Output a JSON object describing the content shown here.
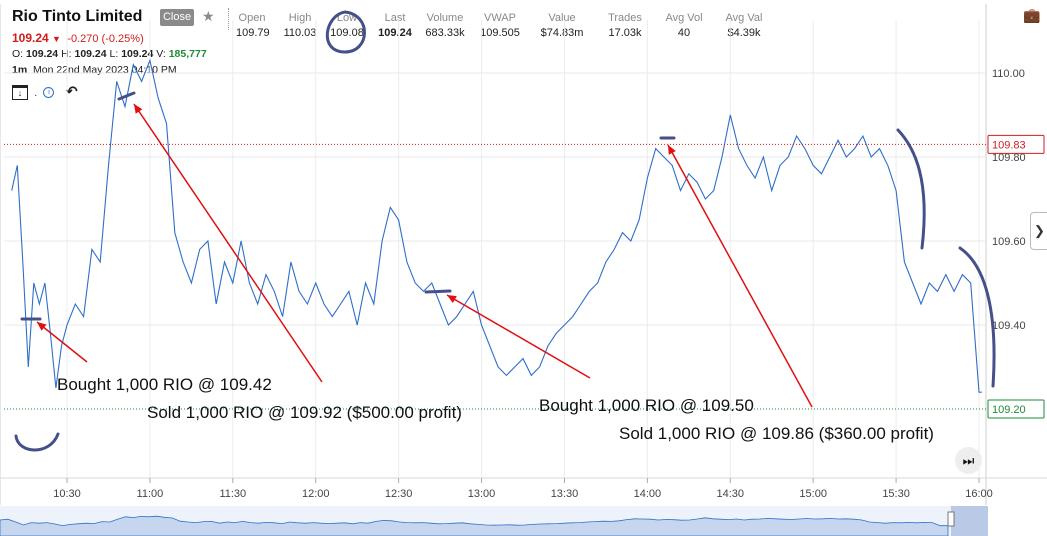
{
  "header": {
    "title": "Rio Tinto Limited",
    "close_label": "Close",
    "price": "109.24",
    "change": "-0.270 (-0.25%)",
    "ohlc": {
      "o_label": "O:",
      "o": "109.24",
      "h_label": "H:",
      "h": "109.24",
      "l_label": "L:",
      "l": "109.24",
      "v_label": "V:",
      "v": "185,777"
    },
    "interval": "1m",
    "datetime": "Mon 22nd May 2023 04:10 PM"
  },
  "stats": [
    {
      "label": "Open",
      "value": "109.79"
    },
    {
      "label": "High",
      "value": "110.03"
    },
    {
      "label": "Low",
      "value": "109.08"
    },
    {
      "label": "Last",
      "value": "109.24"
    },
    {
      "label": "Volume",
      "value": "683.33k"
    },
    {
      "label": "VWAP",
      "value": "109.505"
    },
    {
      "label": "Value",
      "value": "$74.83m"
    },
    {
      "label": "Trades",
      "value": "17.03k"
    },
    {
      "label": "Avg Vol",
      "value": "40"
    },
    {
      "label": "Avg Val",
      "value": "$4.39k"
    }
  ],
  "icons": {
    "star": "star-icon",
    "briefcase": "briefcase-icon",
    "add_folder": "add-folder-icon",
    "info": "info-icon",
    "undo": "undo-icon",
    "fast_forward": "fast-forward-icon",
    "chevron": "chevron-right-icon"
  },
  "colors": {
    "line": "#2f6fc9",
    "down": "#d01c1c",
    "up_vol": "#1e8c3a",
    "annotation_arrow": "#e01010",
    "marker": "#45508a"
  },
  "chart_data": {
    "type": "line",
    "ylim": [
      109.2,
      110.05
    ],
    "y_ticks": [
      "110.00",
      "109.80",
      "109.60",
      "109.40"
    ],
    "x_ticks": [
      "10:30",
      "11:00",
      "11:30",
      "12:00",
      "12:30",
      "13:00",
      "13:30",
      "14:00",
      "14:30",
      "15:00",
      "15:30",
      "16:00"
    ],
    "price_tags": [
      {
        "label": "109.83",
        "value": 109.83,
        "color": "#d01c1c"
      },
      {
        "label": "109.20",
        "value": 109.2,
        "color": "#1e8c3a"
      }
    ],
    "series": [
      {
        "x": [
          "10:10",
          "10:12",
          "10:14",
          "10:16",
          "10:18",
          "10:20",
          "10:22",
          "10:24",
          "10:26",
          "10:28",
          "10:30",
          "10:33",
          "10:36",
          "10:39",
          "10:42",
          "10:45",
          "10:48",
          "10:51",
          "10:54",
          "10:57",
          "11:00",
          "11:03",
          "11:06",
          "11:09",
          "11:12",
          "11:15",
          "11:18",
          "11:21",
          "11:24",
          "11:27",
          "11:30",
          "11:33",
          "11:36",
          "11:39",
          "11:42",
          "11:45",
          "11:48",
          "11:51",
          "11:54",
          "11:57",
          "12:00",
          "12:03",
          "12:06",
          "12:09",
          "12:12",
          "12:15",
          "12:18",
          "12:21",
          "12:24",
          "12:27",
          "12:30",
          "12:33",
          "12:36",
          "12:39",
          "12:42",
          "12:45",
          "12:48",
          "12:51",
          "12:54",
          "12:57",
          "13:00",
          "13:03",
          "13:06",
          "13:09",
          "13:12",
          "13:15",
          "13:18",
          "13:21",
          "13:24",
          "13:27",
          "13:30",
          "13:33",
          "13:36",
          "13:39",
          "13:42",
          "13:45",
          "13:48",
          "13:51",
          "13:54",
          "13:57",
          "14:00",
          "14:03",
          "14:06",
          "14:09",
          "14:12",
          "14:15",
          "14:18",
          "14:21",
          "14:24",
          "14:27",
          "14:30",
          "14:33",
          "14:36",
          "14:39",
          "14:42",
          "14:45",
          "14:48",
          "14:51",
          "14:54",
          "14:57",
          "15:00",
          "15:03",
          "15:06",
          "15:09",
          "15:12",
          "15:15",
          "15:18",
          "15:21",
          "15:24",
          "15:27",
          "15:30",
          "15:33",
          "15:36",
          "15:39",
          "15:42",
          "15:45",
          "15:48",
          "15:51",
          "15:54",
          "15:57",
          "16:00",
          "16:01"
        ],
        "values": [
          109.72,
          109.78,
          109.55,
          109.3,
          109.5,
          109.45,
          109.5,
          109.38,
          109.25,
          109.35,
          109.4,
          109.45,
          109.42,
          109.58,
          109.55,
          109.78,
          109.98,
          109.92,
          110.02,
          109.98,
          110.03,
          109.94,
          109.88,
          109.62,
          109.55,
          109.5,
          109.58,
          109.6,
          109.45,
          109.55,
          109.5,
          109.6,
          109.5,
          109.45,
          109.52,
          109.48,
          109.42,
          109.55,
          109.48,
          109.45,
          109.5,
          109.45,
          109.42,
          109.45,
          109.48,
          109.4,
          109.5,
          109.45,
          109.6,
          109.68,
          109.65,
          109.55,
          109.5,
          109.48,
          109.5,
          109.45,
          109.4,
          109.42,
          109.45,
          109.48,
          109.4,
          109.35,
          109.3,
          109.28,
          109.3,
          109.32,
          109.28,
          109.3,
          109.35,
          109.38,
          109.4,
          109.42,
          109.45,
          109.48,
          109.5,
          109.55,
          109.58,
          109.62,
          109.6,
          109.65,
          109.75,
          109.82,
          109.8,
          109.78,
          109.72,
          109.76,
          109.74,
          109.7,
          109.72,
          109.8,
          109.9,
          109.82,
          109.78,
          109.75,
          109.8,
          109.72,
          109.78,
          109.8,
          109.85,
          109.82,
          109.78,
          109.76,
          109.8,
          109.84,
          109.8,
          109.82,
          109.85,
          109.8,
          109.82,
          109.78,
          109.72,
          109.55,
          109.5,
          109.45,
          109.5,
          109.48,
          109.52,
          109.48,
          109.52,
          109.5,
          109.24,
          109.24
        ]
      }
    ],
    "annotations": [
      "Bought 1,000 RIO @ 109.42",
      "Sold 1,000 RIO @ 109.92 ($500.00 profit)",
      "Bought 1,000 RIO @ 109.50",
      "Sold 1,000 RIO @ 109.86 ($360.00 profit)"
    ]
  }
}
